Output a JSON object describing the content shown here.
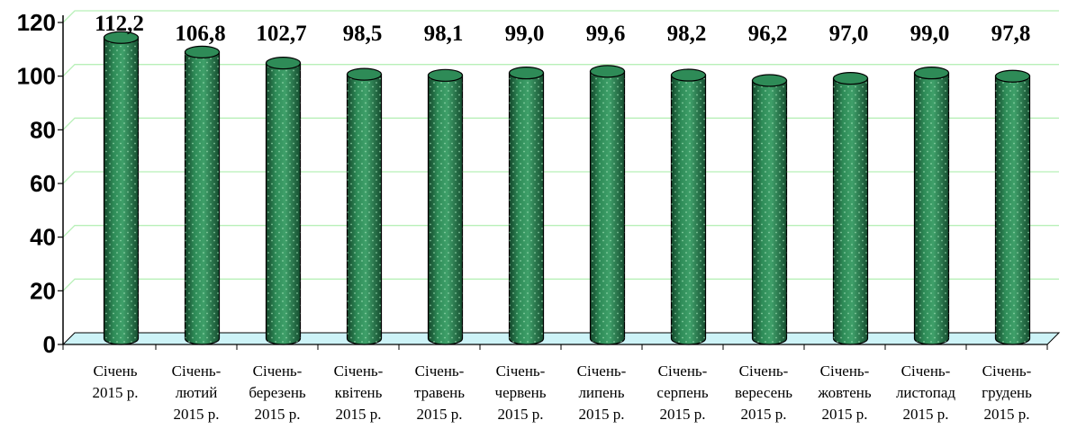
{
  "chart_data": {
    "type": "bar",
    "categories": [
      [
        "Січень",
        "2015 р."
      ],
      [
        "Січень-",
        "лютий",
        "2015 р."
      ],
      [
        "Січень-",
        "березень",
        "2015 р."
      ],
      [
        "Січень-",
        "квітень",
        "2015 р."
      ],
      [
        "Січень-",
        "травень",
        "2015 р."
      ],
      [
        "Січень-",
        "червень",
        "2015 р."
      ],
      [
        "Січень-",
        "липень",
        "2015 р."
      ],
      [
        "Січень-",
        "серпень",
        "2015 р."
      ],
      [
        "Січень-",
        "вересень",
        "2015 р."
      ],
      [
        "Січень-",
        "жовтень",
        "2015 р."
      ],
      [
        "Січень-",
        "листопад",
        "2015 р."
      ],
      [
        "Січень-",
        "грудень",
        "2015 р."
      ]
    ],
    "values": [
      112.2,
      106.8,
      102.7,
      98.5,
      98.1,
      99.0,
      99.6,
      98.2,
      96.2,
      97.0,
      99.0,
      97.8
    ],
    "data_labels": [
      "112,2",
      "106,8",
      "102,7",
      "98,5",
      "98,1",
      "99,0",
      "99,6",
      "98,2",
      "96,2",
      "97,0",
      "99,0",
      "97,8"
    ],
    "y_ticks": [
      "0",
      "20",
      "40",
      "60",
      "80",
      "100",
      "120"
    ],
    "ylim": [
      0,
      120
    ],
    "title": "",
    "xlabel": "",
    "ylabel": "",
    "grid": true,
    "style": "3d-cylinder",
    "colors": {
      "bar": "#2e8b57",
      "bar_dark": "#13452a",
      "bar_light": "#5fbf86",
      "grid": "#b8f0b8",
      "floor": "#cdf3f7"
    }
  }
}
